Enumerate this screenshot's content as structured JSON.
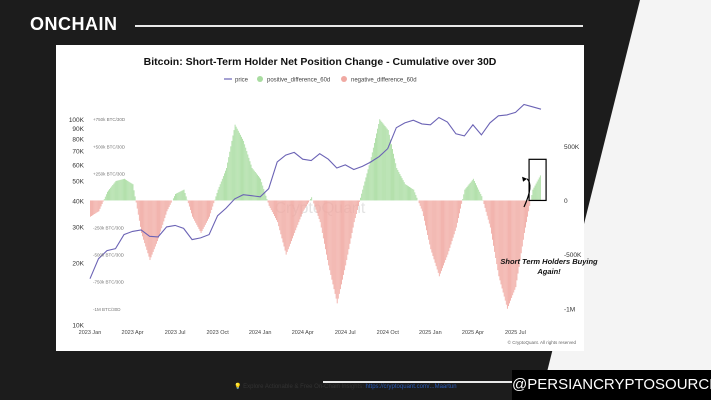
{
  "brand": "ONCHAIN",
  "handle": "@PERSIANCRYPTOSOURCE",
  "chart_data": {
    "type": "line",
    "title": "Bitcoin: Short-Term Holder Net Position Change - Cumulative over 30D",
    "legend": [
      "price",
      "positive_difference_60d",
      "negative_difference_60d"
    ],
    "legend_placement": "top-center",
    "x_ticks": [
      "2023 Jan",
      "2023 Apr",
      "2023 Jul",
      "2023 Oct",
      "2024 Jan",
      "2024 Apr",
      "2024 Jul",
      "2024 Oct",
      "2025 Jan",
      "2025 Apr",
      "2025 Jul"
    ],
    "y_left_ticks": [
      "100K",
      "90K",
      "80K",
      "70K",
      "60K",
      "50K",
      "40K",
      "30K",
      "20K",
      "10K"
    ],
    "y_left_scale": "log",
    "y_right_ticks": [
      "500K",
      "0",
      "-500K",
      "-1M"
    ],
    "inner_labels": [
      "+750k BTC/30D",
      "+500k BTC/30D",
      "+250k BTC/30D",
      "-250k BTC/30D",
      "-500k BTC/30D",
      "-750k BTC/30D",
      "-1M BTC/30D"
    ],
    "watermark": "CryptoQuant",
    "annotation": "Short Term Holders Buying Again!",
    "price_series": {
      "name": "price",
      "x": [
        2023.0,
        2023.05,
        2023.1,
        2023.15,
        2023.2,
        2023.25,
        2023.3,
        2023.35,
        2023.4,
        2023.45,
        2023.5,
        2023.55,
        2023.6,
        2023.65,
        2023.7,
        2023.75,
        2023.8,
        2023.85,
        2023.9,
        2023.95,
        2024.0,
        2024.05,
        2024.1,
        2024.15,
        2024.2,
        2024.25,
        2024.3,
        2024.35,
        2024.4,
        2024.45,
        2024.5,
        2024.55,
        2024.6,
        2024.65,
        2024.7,
        2024.75,
        2024.8,
        2024.85,
        2024.9,
        2024.95,
        2025.0,
        2025.05,
        2025.1,
        2025.15,
        2025.2,
        2025.25,
        2025.3,
        2025.35,
        2025.4,
        2025.45,
        2025.5,
        2025.55,
        2025.6,
        2025.65
      ],
      "values": [
        16800,
        21000,
        23000,
        23500,
        27500,
        28500,
        29000,
        27000,
        26800,
        30000,
        30500,
        29500,
        26000,
        26500,
        27500,
        34000,
        37000,
        41000,
        43000,
        42500,
        42000,
        46000,
        62000,
        67000,
        69000,
        64000,
        63000,
        68000,
        64000,
        58000,
        60000,
        57000,
        59000,
        62000,
        66000,
        72000,
        91000,
        96000,
        99000,
        95000,
        94000,
        102000,
        97000,
        85000,
        83000,
        94000,
        84000,
        96000,
        104000,
        105000,
        108000,
        118000,
        115000,
        112000
      ]
    },
    "net_position_series": {
      "name": "positive_difference_60d / negative_difference_60d",
      "unit": "BTC/30D",
      "x": [
        2023.0,
        2023.05,
        2023.1,
        2023.15,
        2023.2,
        2023.25,
        2023.3,
        2023.35,
        2023.4,
        2023.45,
        2023.5,
        2023.55,
        2023.6,
        2023.65,
        2023.7,
        2023.75,
        2023.8,
        2023.85,
        2023.9,
        2023.95,
        2024.0,
        2024.05,
        2024.1,
        2024.15,
        2024.2,
        2024.25,
        2024.3,
        2024.35,
        2024.4,
        2024.45,
        2024.5,
        2024.55,
        2024.6,
        2024.65,
        2024.7,
        2024.75,
        2024.8,
        2024.85,
        2024.9,
        2024.95,
        2025.0,
        2025.05,
        2025.1,
        2025.15,
        2025.2,
        2025.25,
        2025.3,
        2025.35,
        2025.4,
        2025.45,
        2025.5,
        2025.55,
        2025.6,
        2025.65
      ],
      "values": [
        -150000,
        -100000,
        80000,
        180000,
        200000,
        150000,
        -300000,
        -550000,
        -350000,
        -100000,
        60000,
        100000,
        -150000,
        -300000,
        -150000,
        100000,
        300000,
        700000,
        550000,
        300000,
        200000,
        -50000,
        -200000,
        -500000,
        -300000,
        -100000,
        30000,
        -200000,
        -600000,
        -950000,
        -600000,
        -200000,
        100000,
        400000,
        750000,
        650000,
        300000,
        150000,
        100000,
        -100000,
        -450000,
        -700000,
        -500000,
        -250000,
        100000,
        200000,
        40000,
        -250000,
        -700000,
        -1000000,
        -800000,
        -300000,
        100000,
        250000
      ]
    },
    "ylim_price": [
      10000,
      120000
    ],
    "ylim_net": [
      -1150000,
      900000
    ],
    "colors": {
      "price": "#6b63b5",
      "positive": "#a8dca0",
      "negative": "#f0a9a2",
      "highlight_box": "#000000"
    }
  },
  "footer": {
    "prefix": "Explore Actionable & Free On-Chain Insights: ",
    "link": "https://cryptoquant.com/...Maartun",
    "copyright": "© CryptoQuant. All rights reserved"
  }
}
